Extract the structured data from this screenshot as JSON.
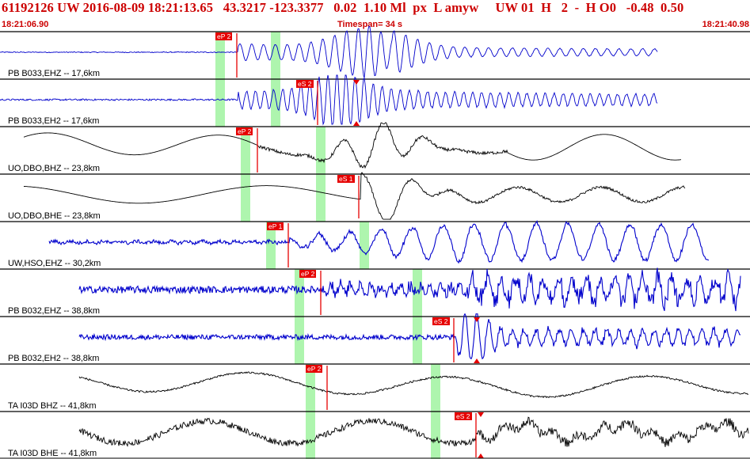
{
  "header": {
    "info": "61192126 UW 2016-08-09 18:21:13.65   43.3217 -123.3377   0.02  1.10 Ml  px  L amyw     UW 01  H   2  -  H O0   -0.48  0.50",
    "start_time": "18:21:06.90",
    "timespan": "Timespan=  34 s",
    "end_time": "18:21:40.98"
  },
  "colors": {
    "header_text": "#cc0000",
    "separator": "#000000",
    "trace_blue": "#0000cc",
    "trace_black": "#000000",
    "phase_window": "#aef5ae",
    "pick_red": "#e60000"
  },
  "traces": [
    {
      "label": "PB B033,EHZ -- 17,6km",
      "color": "blue",
      "style": "pulse-z",
      "start": 0,
      "end": 830,
      "onset": 300,
      "amp": 0.95,
      "windows": [
        278,
        348
      ],
      "picks": [
        {
          "x": 299,
          "text": "eP 2",
          "dir": "down"
        }
      ]
    },
    {
      "label": "PB B033,EH2 -- 17,6km",
      "color": "blue",
      "style": "pulse-h",
      "start": 0,
      "end": 830,
      "onset": 300,
      "amp": 0.9,
      "windows": [
        278,
        348
      ],
      "picks": [
        {
          "x": 401,
          "text": "eS 2",
          "dir": "down"
        },
        {
          "x": 450,
          "text": "",
          "dir": "arrow"
        }
      ]
    },
    {
      "label": "UO,DBO,BHZ -- 23,8km",
      "color": "black",
      "style": "long-z",
      "start": 30,
      "end": 860,
      "onset": 325,
      "amp": 0.9,
      "windows": [
        310,
        405
      ],
      "picks": [
        {
          "x": 325,
          "text": "eP 2",
          "dir": "down"
        }
      ]
    },
    {
      "label": "UO,DBO,BHE -- 23,8km",
      "color": "black",
      "style": "long-h",
      "start": 30,
      "end": 865,
      "onset": 455,
      "amp": 0.9,
      "windows": [
        310,
        405
      ],
      "picks": [
        {
          "x": 453,
          "text": "eS 1",
          "dir": "up"
        }
      ]
    },
    {
      "label": "UW,HSO,EHZ -- 30,2km",
      "color": "blue",
      "style": "noisy-z",
      "start": 62,
      "end": 895,
      "onset": 365,
      "amp": 0.8,
      "windows": [
        342,
        460
      ],
      "picks": [
        {
          "x": 364,
          "text": "eP 1",
          "dir": "down"
        }
      ]
    },
    {
      "label": "PB B032,EHZ -- 38,8km",
      "color": "blue",
      "style": "noisy-burst",
      "start": 100,
      "end": 935,
      "onset": 405,
      "amp": 0.85,
      "windows": [
        378,
        527
      ],
      "picks": [
        {
          "x": 405,
          "text": "eP 2",
          "dir": "down"
        }
      ]
    },
    {
      "label": "PB B032,EH2 -- 38,8km",
      "color": "blue",
      "style": "noisy-burst-s",
      "start": 100,
      "end": 935,
      "onset": 575,
      "amp": 0.85,
      "windows": [
        378,
        527
      ],
      "picks": [
        {
          "x": 573,
          "text": "eS 2",
          "dir": "down"
        },
        {
          "x": 602,
          "text": "",
          "dir": "arrow"
        }
      ]
    },
    {
      "label": "TA I03D BHZ -- 41,8km",
      "color": "black",
      "style": "long-slow",
      "start": 100,
      "end": 945,
      "onset": 412,
      "amp": 0.75,
      "windows": [
        392,
        550
      ],
      "picks": [
        {
          "x": 413,
          "text": "eP 2",
          "dir": "down"
        }
      ]
    },
    {
      "label": "TA I03D BHE -- 41,8km",
      "color": "black",
      "style": "long-noisy",
      "start": 100,
      "end": 945,
      "onset": 600,
      "amp": 0.85,
      "windows": [
        392,
        550
      ],
      "picks": [
        {
          "x": 601,
          "text": "eS 2",
          "dir": "down"
        },
        {
          "x": 607,
          "text": "",
          "dir": "arrow"
        }
      ]
    }
  ]
}
